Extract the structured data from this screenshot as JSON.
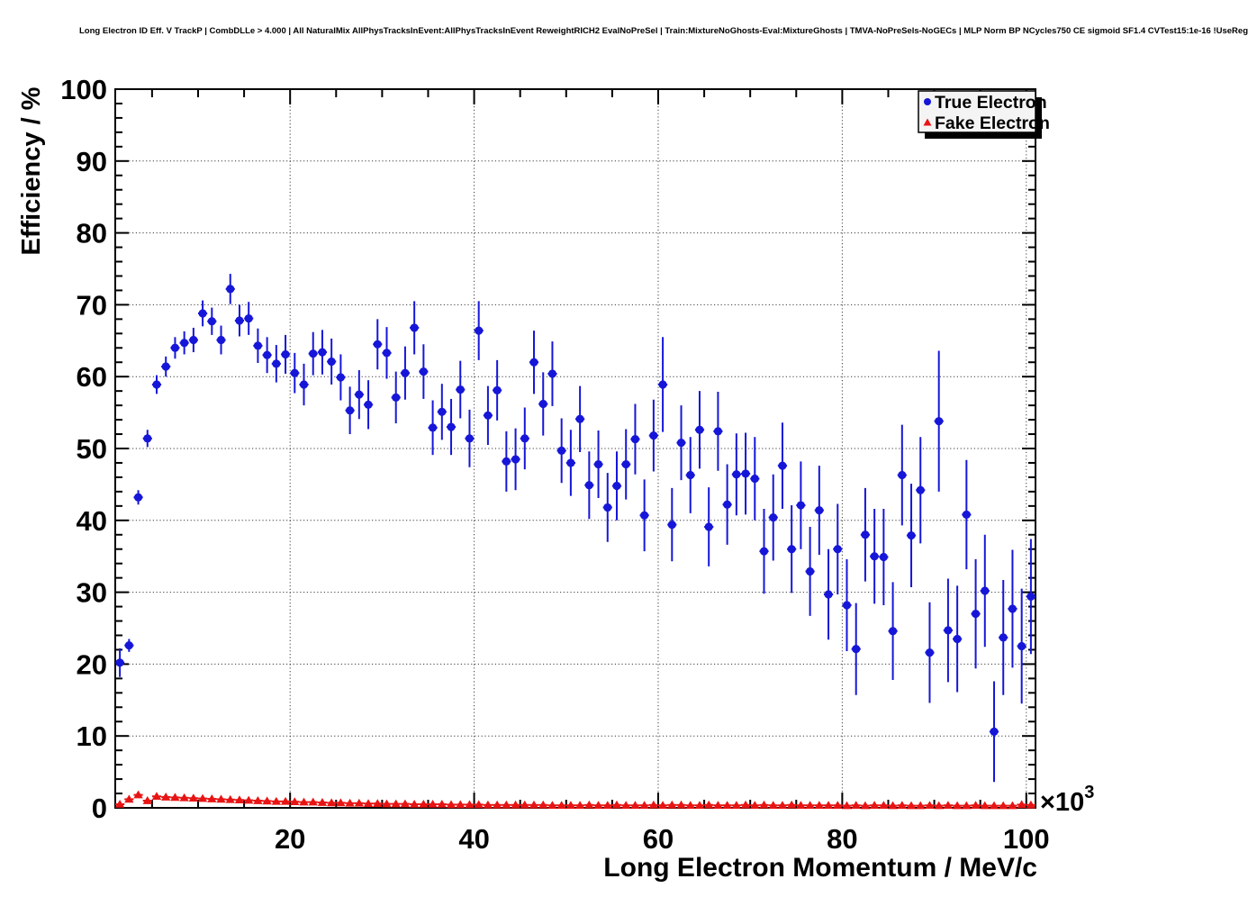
{
  "chart_data": {
    "type": "scatter",
    "title": "Long Electron ID Eff. V TrackP | CombDLLe > 4.000 | All NaturalMix AllPhysTracksInEvent:AllPhysTracksInEvent ReweightRICH2 EvalNoPreSel | Train:MixtureNoGhosts-Eval:MixtureGhosts | TMVA-NoPreSels-NoGECs | MLP Norm BP NCycles750 CE sigmoid SF1.4 CVTest15:1e-16 !UseReg",
    "xlabel": "Long Electron Momentum / MeV/c",
    "ylabel": "Efficiency / %",
    "x_axis_exponent": {
      "base": "×10",
      "exp": "3"
    },
    "xlim": [
      1.0,
      101.0
    ],
    "ylim": [
      0,
      100
    ],
    "x_major_ticks": [
      20,
      40,
      60,
      80,
      100
    ],
    "x_minor_step": 5,
    "y_major_ticks": [
      0,
      10,
      20,
      30,
      40,
      50,
      60,
      70,
      80,
      90,
      100
    ],
    "y_minor_step": 2,
    "grid": "dotted",
    "colors": {
      "true_electron": "#1616d9",
      "fake_electron": "#e81414",
      "grid": "#3a3a3a",
      "frame": "#000000"
    },
    "legend": {
      "position": "top-right",
      "entries": [
        {
          "label": "True Electron",
          "marker": "circle",
          "color": "#1616d9"
        },
        {
          "label": "Fake Electron",
          "marker": "triangle",
          "color": "#e81414"
        }
      ]
    },
    "x": [
      1.5,
      2.5,
      3.5,
      4.5,
      5.5,
      6.5,
      7.5,
      8.5,
      9.5,
      10.5,
      11.5,
      12.5,
      13.5,
      14.5,
      15.5,
      16.5,
      17.5,
      18.5,
      19.5,
      20.5,
      21.5,
      22.5,
      23.5,
      24.5,
      25.5,
      26.5,
      27.5,
      28.5,
      29.5,
      30.5,
      31.5,
      32.5,
      33.5,
      34.5,
      35.5,
      36.5,
      37.5,
      38.5,
      39.5,
      40.5,
      41.5,
      42.5,
      43.5,
      44.5,
      45.5,
      46.5,
      47.5,
      48.5,
      49.5,
      50.5,
      51.5,
      52.5,
      53.5,
      54.5,
      55.5,
      56.5,
      57.5,
      58.5,
      59.5,
      60.5,
      61.5,
      62.5,
      63.5,
      64.5,
      65.5,
      66.5,
      67.5,
      68.5,
      69.5,
      70.5,
      71.5,
      72.5,
      73.5,
      74.5,
      75.5,
      76.5,
      77.5,
      78.5,
      79.5,
      80.5,
      81.5,
      82.5,
      83.5,
      84.5,
      85.5,
      86.5,
      87.5,
      88.5,
      89.5,
      90.5,
      91.5,
      92.5,
      93.5,
      94.5,
      95.5,
      96.5,
      97.5,
      98.5,
      99.5,
      100.5
    ],
    "series": [
      {
        "name": "True Electron",
        "marker": "circle",
        "color": "#1616d9",
        "xerr": 0.5,
        "y": [
          20.2,
          22.6,
          43.2,
          51.4,
          58.9,
          61.4,
          64.0,
          64.7,
          65.1,
          68.8,
          67.7,
          65.1,
          72.2,
          67.8,
          68.1,
          64.3,
          63.0,
          61.8,
          63.1,
          60.5,
          58.9,
          63.2,
          63.4,
          62.1,
          59.9,
          55.3,
          57.5,
          56.1,
          64.5,
          63.3,
          57.1,
          60.5,
          66.8,
          60.7,
          52.9,
          55.1,
          53.0,
          58.2,
          51.4,
          66.4,
          54.6,
          58.1,
          48.2,
          48.5,
          51.4,
          62.0,
          56.2,
          60.4,
          49.7,
          48.0,
          54.1,
          44.9,
          47.8,
          41.8,
          44.8,
          47.8,
          51.3,
          40.7,
          51.8,
          58.9,
          39.4,
          50.8,
          46.3,
          52.6,
          39.1,
          52.4,
          42.2,
          46.4,
          46.5,
          45.8,
          35.7,
          40.4,
          47.6,
          36.0,
          42.1,
          32.9,
          41.4,
          29.7,
          36.0,
          28.2,
          22.1,
          38.0,
          35.0,
          34.9,
          24.6,
          46.3,
          37.9,
          44.2,
          21.6,
          53.8,
          24.7,
          23.5,
          40.8,
          27.0,
          30.2,
          10.6,
          23.7,
          27.7,
          22.5,
          29.4
        ],
        "yerr": [
          2.0,
          0.9,
          1.0,
          1.2,
          1.3,
          1.4,
          1.5,
          1.6,
          1.7,
          1.8,
          1.9,
          2.0,
          2.1,
          2.2,
          2.3,
          2.4,
          2.5,
          2.6,
          2.7,
          2.8,
          2.9,
          3.0,
          3.1,
          3.2,
          3.2,
          3.3,
          3.4,
          3.4,
          3.5,
          3.6,
          3.6,
          3.7,
          3.7,
          3.8,
          3.8,
          3.9,
          3.9,
          4.0,
          4.0,
          4.1,
          4.1,
          4.2,
          4.2,
          4.3,
          4.3,
          4.4,
          4.4,
          4.5,
          4.5,
          4.6,
          4.6,
          4.7,
          4.7,
          4.8,
          4.8,
          4.9,
          4.9,
          5.0,
          5.0,
          6.6,
          5.1,
          5.2,
          5.3,
          5.4,
          5.5,
          5.5,
          5.6,
          5.7,
          5.7,
          5.8,
          5.9,
          6.0,
          6.0,
          6.1,
          6.1,
          6.2,
          6.2,
          6.3,
          6.3,
          6.4,
          6.4,
          6.5,
          6.6,
          6.7,
          6.8,
          7.0,
          7.2,
          7.4,
          7.0,
          9.8,
          7.2,
          7.4,
          7.6,
          7.6,
          7.8,
          7.0,
          8.0,
          8.2,
          8.0,
          8.0
        ]
      },
      {
        "name": "Fake Electron",
        "marker": "triangle",
        "color": "#e81414",
        "xerr": 0.5,
        "y": [
          0.5,
          1.2,
          1.8,
          1.0,
          1.6,
          1.5,
          1.45,
          1.4,
          1.35,
          1.3,
          1.25,
          1.2,
          1.15,
          1.1,
          1.05,
          1.0,
          0.95,
          0.9,
          0.9,
          0.85,
          0.8,
          0.8,
          0.75,
          0.7,
          0.7,
          0.65,
          0.65,
          0.6,
          0.6,
          0.55,
          0.55,
          0.55,
          0.5,
          0.5,
          0.5,
          0.5,
          0.45,
          0.45,
          0.45,
          0.45,
          0.4,
          0.4,
          0.4,
          0.4,
          0.4,
          0.4,
          0.4,
          0.35,
          0.35,
          0.35,
          0.35,
          0.4,
          0.35,
          0.35,
          0.4,
          0.35,
          0.35,
          0.35,
          0.4,
          0.35,
          0.4,
          0.4,
          0.35,
          0.35,
          0.4,
          0.35,
          0.35,
          0.35,
          0.4,
          0.35,
          0.4,
          0.35,
          0.35,
          0.4,
          0.35,
          0.35,
          0.35,
          0.35,
          0.35,
          0.3,
          0.35,
          0.3,
          0.35,
          0.35,
          0.3,
          0.35,
          0.3,
          0.3,
          0.35,
          0.3,
          0.35,
          0.3,
          0.3,
          0.35,
          0.3,
          0.3,
          0.3,
          0.3,
          0.45,
          0.4
        ],
        "yerr_uniform": 0.18
      }
    ],
    "y_tick_labels": [
      "0",
      "10",
      "20",
      "30",
      "40",
      "50",
      "60",
      "70",
      "80",
      "90",
      "100"
    ],
    "x_tick_labels": [
      "20",
      "40",
      "60",
      "80",
      "100"
    ]
  }
}
